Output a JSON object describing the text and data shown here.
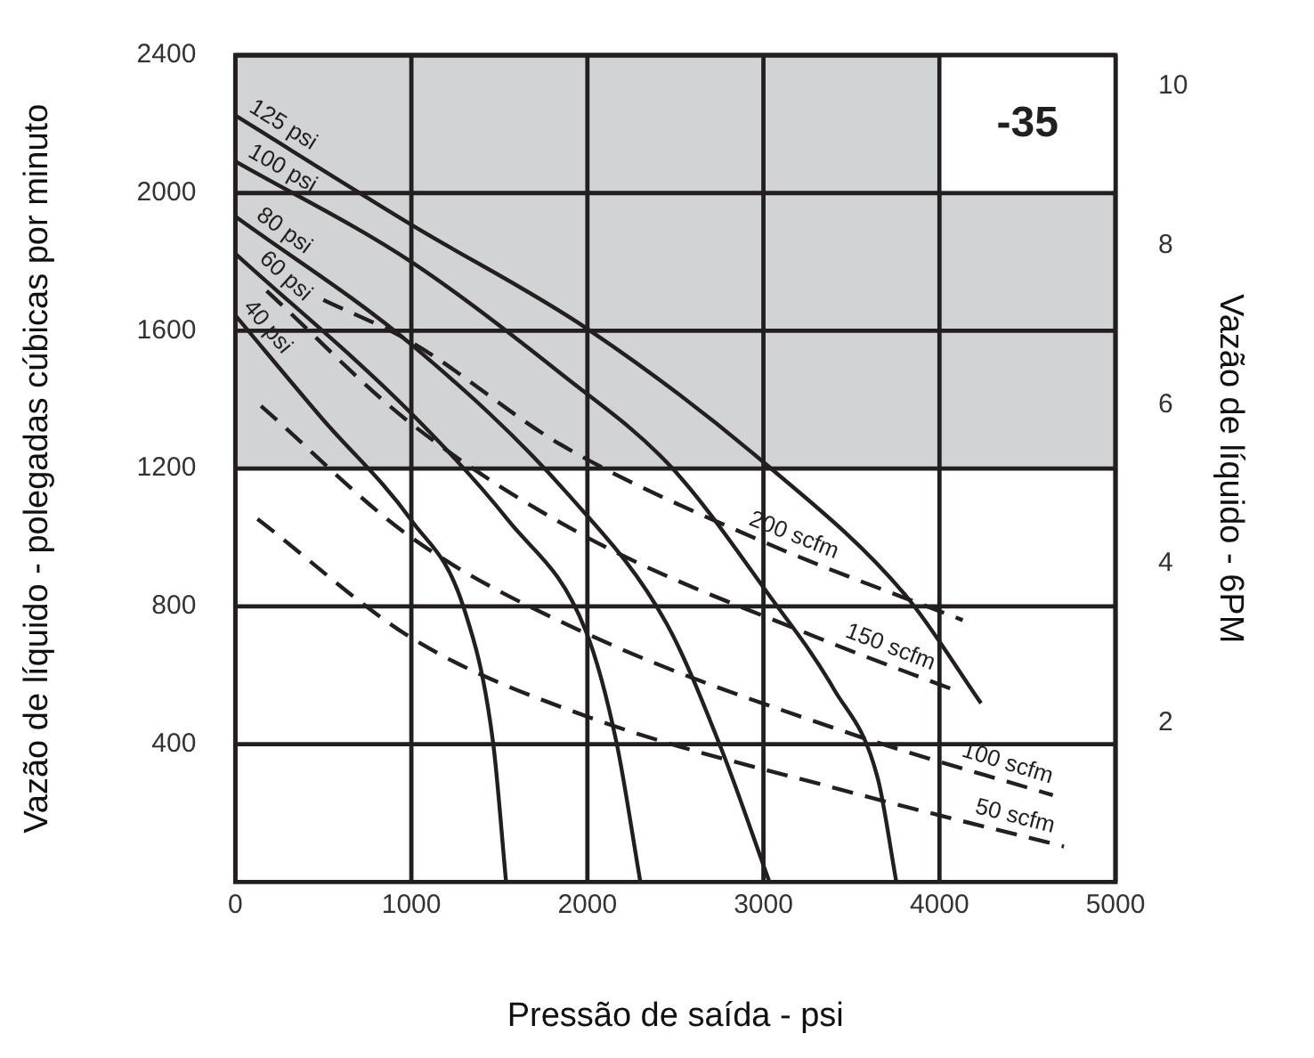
{
  "chart_data": {
    "type": "line",
    "xlabel": "Pressão de saída - psi",
    "ylabel": "Vazão de líquido - polegadas cúbicas por minuto",
    "y2label": "Vazão de líquido - 6PM",
    "xlim": [
      0,
      5000
    ],
    "xticks": [
      0,
      1000,
      2000,
      3000,
      4000,
      5000
    ],
    "ylim": [
      0,
      2400
    ],
    "yticks": [
      400,
      800,
      1200,
      1600,
      2000,
      2400
    ],
    "y2lim": [
      0,
      10.39
    ],
    "y2ticks": [
      2,
      4,
      6,
      8,
      10
    ],
    "grid": true,
    "legend": false,
    "marker": "none",
    "bands": [
      {
        "axis": "y",
        "from": 1200,
        "to": 2400,
        "color": "#d1d3d4"
      }
    ],
    "annotations": [
      "-35"
    ],
    "series": [
      {
        "name": "125 psi",
        "color": "#231f20",
        "line_style": "solid",
        "x": [
          0,
          1000,
          2008,
          3002,
          3808,
          4236
        ],
        "values": [
          2225,
          1908,
          1603,
          1218,
          832,
          519
        ]
      },
      {
        "name": "100 psi",
        "color": "#231f20",
        "line_style": "solid",
        "x": [
          0,
          1000,
          1851,
          2479,
          3033,
          3400,
          3650,
          3755
        ],
        "values": [
          2092,
          1800,
          1475,
          1203,
          832,
          560,
          300,
          0
        ]
      },
      {
        "name": "80 psi",
        "color": "#231f20",
        "line_style": "solid",
        "x": [
          0,
          1000,
          1900,
          2450,
          2762,
          3034
        ],
        "values": [
          1932,
          1560,
          1120,
          750,
          385,
          0
        ]
      },
      {
        "name": "60 psi",
        "color": "#231f20",
        "line_style": "solid",
        "x": [
          0,
          1000,
          1550,
          1990,
          2165,
          2301
        ],
        "values": [
          1824,
          1360,
          1050,
          730,
          406,
          0
        ]
      },
      {
        "name": "40 psi",
        "color": "#231f20",
        "line_style": "solid",
        "x": [
          0,
          492,
          1000,
          1297,
          1464,
          1538
        ],
        "values": [
          1645,
          1346,
          1050,
          797,
          406,
          0
        ]
      },
      {
        "name": "200 scfm",
        "color": "#231f20",
        "line_style": "dashed",
        "x": [
          500,
          1000,
          1851,
          3002,
          4132
        ],
        "values": [
          1690,
          1567,
          1269,
          987,
          760
        ]
      },
      {
        "name": "150 scfm",
        "color": "#231f20",
        "line_style": "dashed",
        "x": [
          178,
          1000,
          2000,
          3285,
          4121
        ],
        "values": [
          1716,
          1330,
          1000,
          714,
          550
        ]
      },
      {
        "name": "100 scfm",
        "color": "#231f20",
        "line_style": "dashed",
        "x": [
          146,
          1000,
          2000,
          3500,
          4644
        ],
        "values": [
          1382,
          1000,
          720,
          430,
          252
        ]
      },
      {
        "name": "50 scfm",
        "color": "#231f20",
        "line_style": "dashed",
        "x": [
          126,
          1015,
          2000,
          3500,
          4707
        ],
        "values": [
          1054,
          704,
          480,
          260,
          103
        ]
      }
    ]
  }
}
